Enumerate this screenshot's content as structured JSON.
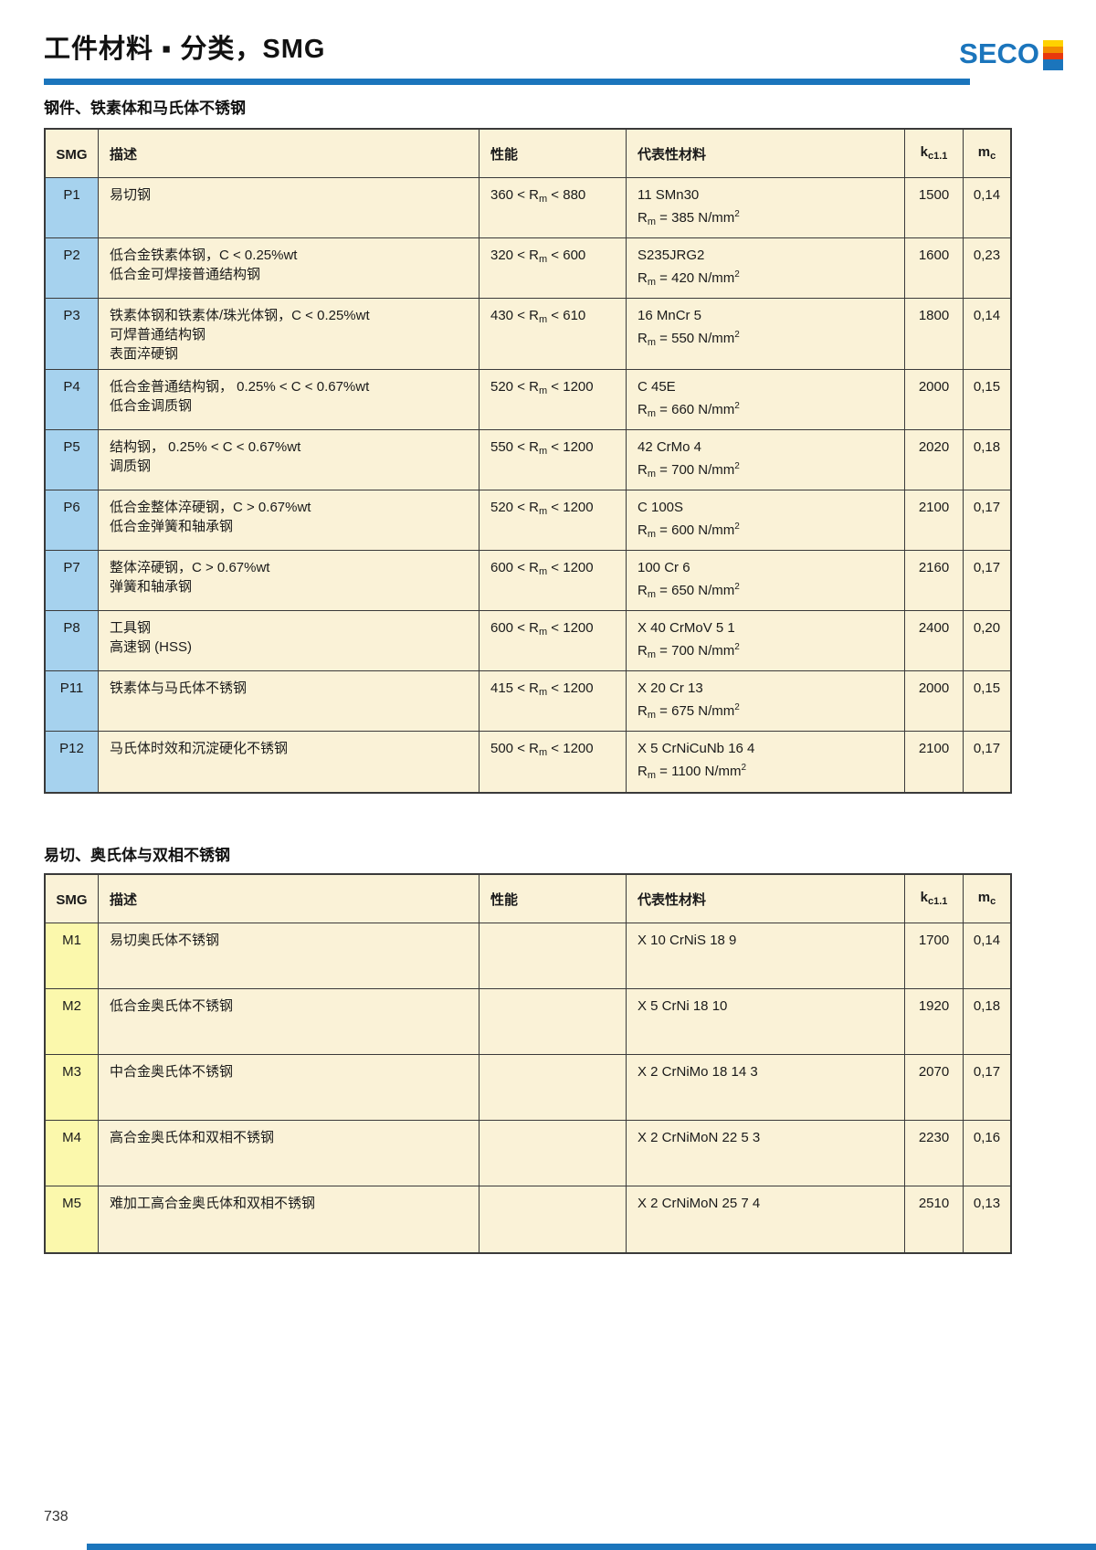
{
  "header": {
    "title": "工件材料 ▪ 分类，SMG",
    "logo": "SECO"
  },
  "footer": {
    "page_number": "738"
  },
  "colors": {
    "accent_blue": "#1B75BC",
    "cell_cream": "#FAF2D7",
    "smg_blue": "#A6D2EE",
    "smg_yellow": "#FBF8AC",
    "border": "#3A3A3A",
    "logo_stripes": [
      "#FFD200",
      "#F28C00",
      "#E8380D",
      "#1B75BC"
    ]
  },
  "table_columns": {
    "smg": "SMG",
    "desc": "描述",
    "perf": "性能",
    "material": "代表性材料",
    "kc_base": "k",
    "kc_sub": "c1.1",
    "mc_base": "m",
    "mc_sub": "c"
  },
  "strings": {
    "lt": "<",
    "eq": "=",
    "r_base": "R",
    "r_sub": "m",
    "unit": "N/mm",
    "unit_sup": "2"
  },
  "sections": [
    {
      "title": "钢件、铁素体和马氏体不锈钢",
      "smg_color": "blue",
      "rows": [
        {
          "smg": "P1",
          "desc_lines": [
            "易切钢"
          ],
          "perf": {
            "min": "360",
            "max": "880"
          },
          "material": {
            "name": "11 SMn30",
            "rm": "385"
          },
          "kc": "1500",
          "mc": "0,14"
        },
        {
          "smg": "P2",
          "desc_lines": [
            "低合金铁素体钢，C < 0.25%wt",
            "低合金可焊接普通结构钢"
          ],
          "perf": {
            "min": "320",
            "max": "600"
          },
          "material": {
            "name": "S235JRG2",
            "rm": "420"
          },
          "kc": "1600",
          "mc": "0,23"
        },
        {
          "smg": "P3",
          "desc_lines": [
            "铁素体钢和铁素体/珠光体钢，C < 0.25%wt",
            "可焊普通结构钢",
            "表面淬硬钢"
          ],
          "perf": {
            "min": "430",
            "max": "610"
          },
          "material": {
            "name": "16 MnCr 5",
            "rm": "550"
          },
          "kc": "1800",
          "mc": "0,14"
        },
        {
          "smg": "P4",
          "desc_lines": [
            "低合金普通结构钢， 0.25% < C < 0.67%wt",
            "低合金调质钢"
          ],
          "perf": {
            "min": "520",
            "max": "1200"
          },
          "material": {
            "name": "C 45E",
            "rm": "660"
          },
          "kc": "2000",
          "mc": "0,15"
        },
        {
          "smg": "P5",
          "desc_lines": [
            "结构钢， 0.25% < C < 0.67%wt",
            "调质钢"
          ],
          "perf": {
            "min": "550",
            "max": "1200"
          },
          "material": {
            "name": "42 CrMo 4",
            "rm": "700"
          },
          "kc": "2020",
          "mc": "0,18"
        },
        {
          "smg": "P6",
          "desc_lines": [
            "低合金整体淬硬钢，C > 0.67%wt",
            "低合金弹簧和轴承钢"
          ],
          "perf": {
            "min": "520",
            "max": "1200"
          },
          "material": {
            "name": "C 100S",
            "rm": "600"
          },
          "kc": "2100",
          "mc": "0,17"
        },
        {
          "smg": "P7",
          "desc_lines": [
            "整体淬硬钢，C > 0.67%wt",
            "弹簧和轴承钢"
          ],
          "perf": {
            "min": "600",
            "max": "1200"
          },
          "material": {
            "name": "100 Cr 6",
            "rm": "650"
          },
          "kc": "2160",
          "mc": "0,17"
        },
        {
          "smg": "P8",
          "desc_lines": [
            "工具钢",
            "高速钢 (HSS)"
          ],
          "perf": {
            "min": "600",
            "max": "1200"
          },
          "material": {
            "name": "X 40 CrMoV 5 1",
            "rm": "700"
          },
          "kc": "2400",
          "mc": "0,20"
        },
        {
          "smg": "P11",
          "desc_lines": [
            "铁素体与马氏体不锈钢"
          ],
          "perf": {
            "min": "415",
            "max": "1200"
          },
          "material": {
            "name": "X 20 Cr 13",
            "rm": "675"
          },
          "kc": "2000",
          "mc": "0,15"
        },
        {
          "smg": "P12",
          "desc_lines": [
            "马氏体时效和沉淀硬化不锈钢"
          ],
          "perf": {
            "min": "500",
            "max": "1200"
          },
          "material": {
            "name": "X 5 CrNiCuNb 16 4",
            "rm": "1100"
          },
          "kc": "2100",
          "mc": "0,17"
        }
      ]
    },
    {
      "title": "易切、奥氏体与双相不锈钢",
      "smg_color": "yellow",
      "rows": [
        {
          "smg": "M1",
          "desc_lines": [
            "易切奥氏体不锈钢"
          ],
          "perf": null,
          "material": {
            "name": "X 10 CrNiS 18 9",
            "rm": null
          },
          "kc": "1700",
          "mc": "0,14"
        },
        {
          "smg": "M2",
          "desc_lines": [
            "低合金奥氏体不锈钢"
          ],
          "perf": null,
          "material": {
            "name": "X 5 CrNi 18 10",
            "rm": null
          },
          "kc": "1920",
          "mc": "0,18"
        },
        {
          "smg": "M3",
          "desc_lines": [
            "中合金奥氏体不锈钢"
          ],
          "perf": null,
          "material": {
            "name": "X 2 CrNiMo 18 14 3",
            "rm": null
          },
          "kc": "2070",
          "mc": "0,17"
        },
        {
          "smg": "M4",
          "desc_lines": [
            "高合金奥氏体和双相不锈钢"
          ],
          "perf": null,
          "material": {
            "name": "X 2 CrNiMoN 22 5 3",
            "rm": null
          },
          "kc": "2230",
          "mc": "0,16"
        },
        {
          "smg": "M5",
          "desc_lines": [
            "难加工高合金奥氏体和双相不锈钢"
          ],
          "perf": null,
          "material": {
            "name": "X 2 CrNiMoN 25 7 4",
            "rm": null
          },
          "kc": "2510",
          "mc": "0,13"
        }
      ]
    }
  ]
}
